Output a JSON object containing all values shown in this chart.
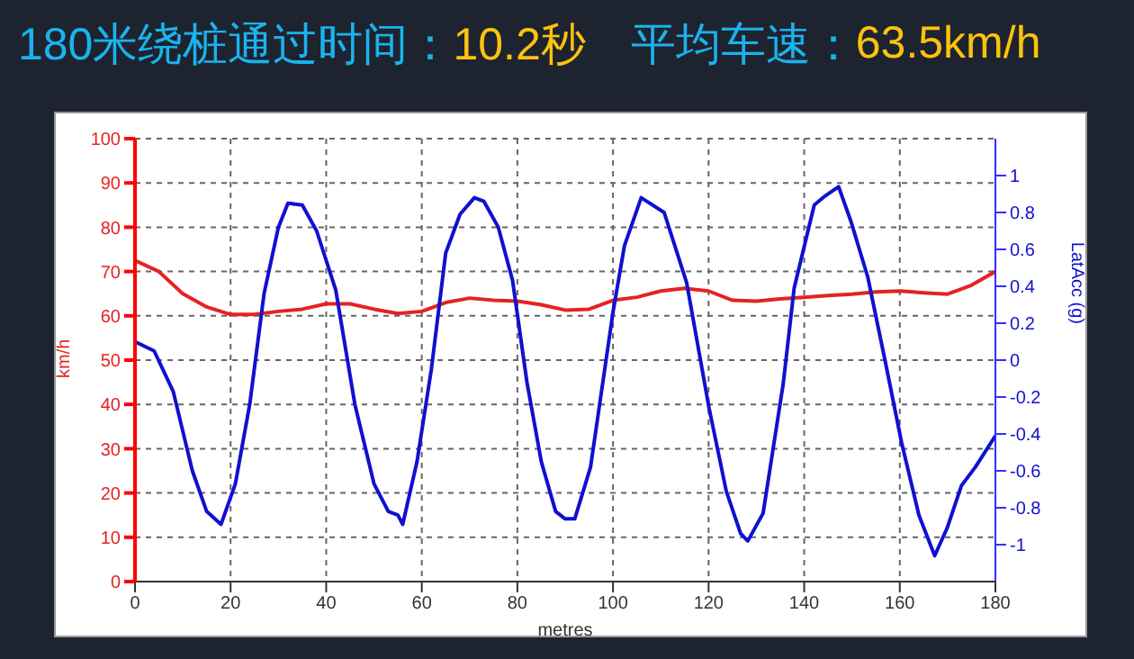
{
  "chart_data": {
    "type": "line",
    "title": "180米绕桩通过时间：10.2秒　平均车速：63.5km/h",
    "xlabel": "metres",
    "ylabel": "km/h",
    "y2label": "LatAcc (g)",
    "xlim": [
      0,
      180
    ],
    "xticks": [
      0,
      20,
      40,
      60,
      80,
      100,
      120,
      140,
      160,
      180
    ],
    "ylim": [
      0,
      100
    ],
    "yticks": [
      0,
      10,
      20,
      30,
      40,
      50,
      60,
      70,
      80,
      90,
      100
    ],
    "y2lim": [
      -1.2,
      1.2
    ],
    "y2ticks": [
      -1,
      -0.8,
      -0.6,
      -0.4,
      -0.2,
      0,
      0.2,
      0.4,
      0.6,
      0.8,
      1
    ],
    "grid": true,
    "line_style": "solid",
    "marker": "none",
    "legend": false,
    "series": [
      {
        "color": "#e52222",
        "x": [
          0,
          5,
          10,
          15,
          20,
          25,
          30,
          35,
          40,
          45,
          50,
          55,
          60,
          65,
          70,
          75,
          80,
          85,
          90,
          95,
          100,
          105,
          110,
          115,
          120,
          125,
          130,
          135,
          140,
          145,
          150,
          155,
          160,
          165,
          170,
          175,
          180
        ],
        "values": [
          72.5,
          70,
          65,
          62,
          60.3,
          60.3,
          61,
          61.5,
          62.7,
          62.7,
          61.5,
          60.5,
          61,
          63,
          64,
          63.5,
          63.3,
          62.5,
          61.3,
          61.5,
          63.5,
          64.2,
          65.6,
          66.2,
          65.6,
          63.5,
          63.3,
          63.8,
          64.2,
          64.6,
          64.9,
          65.4,
          65.6,
          65.2,
          64.9,
          66.9,
          70
        ]
      },
      {
        "color": "#1010d0",
        "axis": "y2",
        "x": [
          0,
          4,
          8,
          12,
          15,
          18,
          21,
          24,
          27,
          30,
          32,
          35,
          38,
          42,
          46,
          50,
          53,
          55,
          56,
          59,
          62,
          65,
          68,
          71,
          73,
          76,
          79,
          82,
          85,
          88,
          90,
          92,
          95.3,
          100,
          102.4,
          105.9,
          110.7,
          115.4,
          120.1,
          123.7,
          126.7,
          128.2,
          131.4,
          135.6,
          137.9,
          142.1,
          144.4,
          147.2,
          149.8,
          153.3,
          156.9,
          160.4,
          164,
          167.3,
          169.9,
          172.9,
          175.8,
          180
        ],
        "values": [
          0.1,
          0.05,
          -0.17,
          -0.6,
          -0.82,
          -0.89,
          -0.67,
          -0.24,
          0.36,
          0.72,
          0.85,
          0.84,
          0.7,
          0.38,
          -0.24,
          -0.67,
          -0.82,
          -0.84,
          -0.89,
          -0.55,
          -0.05,
          0.58,
          0.79,
          0.88,
          0.86,
          0.72,
          0.43,
          -0.12,
          -0.55,
          -0.82,
          -0.86,
          -0.86,
          -0.58,
          0.26,
          0.62,
          0.88,
          0.8,
          0.42,
          -0.26,
          -0.71,
          -0.94,
          -0.98,
          -0.83,
          -0.13,
          0.39,
          0.84,
          0.89,
          0.94,
          0.75,
          0.45,
          0,
          -0.45,
          -0.84,
          -1.06,
          -0.91,
          -0.68,
          -0.58,
          -0.41
        ]
      }
    ]
  }
}
